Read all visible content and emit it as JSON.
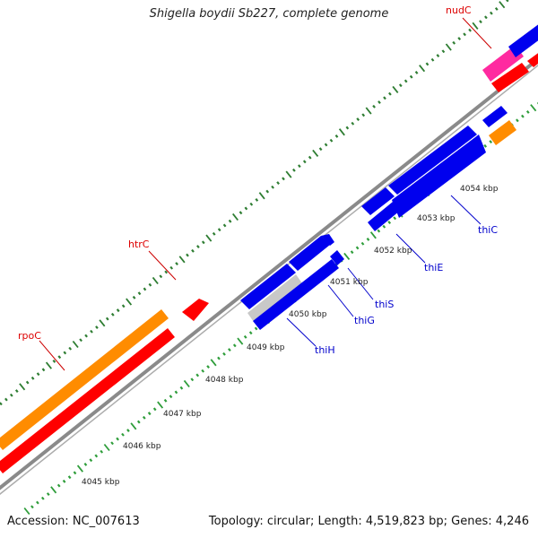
{
  "title": "Shigella boydii Sb227, complete genome",
  "footer": {
    "accession": "Accession: NC_007613",
    "topology": "Topology: circular; Length: 4,519,823 bp; Genes: 4,246"
  },
  "colors": {
    "background": "#ffffff",
    "backbone": "#8c8c8c",
    "tick_major": "#2e7d32",
    "tick_minor": "#2e9d3a",
    "gene_red": "#ff0000",
    "gene_orange": "#ff8c00",
    "gene_blue": "#0000ee",
    "gene_magenta": "#ff2aa0",
    "gene_gray": "#c8c8c8",
    "label_red": "#dd0000",
    "label_blue": "#0000cc"
  },
  "scale_labels": [
    "4045 kbp",
    "4046 kbp",
    "4047 kbp",
    "4048 kbp",
    "4049 kbp",
    "4050 kbp",
    "4051 kbp",
    "4052 kbp",
    "4053 kbp",
    "4054 kbp"
  ],
  "gene_labels": [
    {
      "name": "nudC",
      "color": "label_red"
    },
    {
      "name": "htrC",
      "color": "label_red"
    },
    {
      "name": "rpoC",
      "color": "label_red"
    },
    {
      "name": "thiC",
      "color": "label_blue"
    },
    {
      "name": "thiE",
      "color": "label_blue"
    },
    {
      "name": "thiS",
      "color": "label_blue"
    },
    {
      "name": "thiG",
      "color": "label_blue"
    },
    {
      "name": "thiH",
      "color": "label_blue"
    }
  ]
}
